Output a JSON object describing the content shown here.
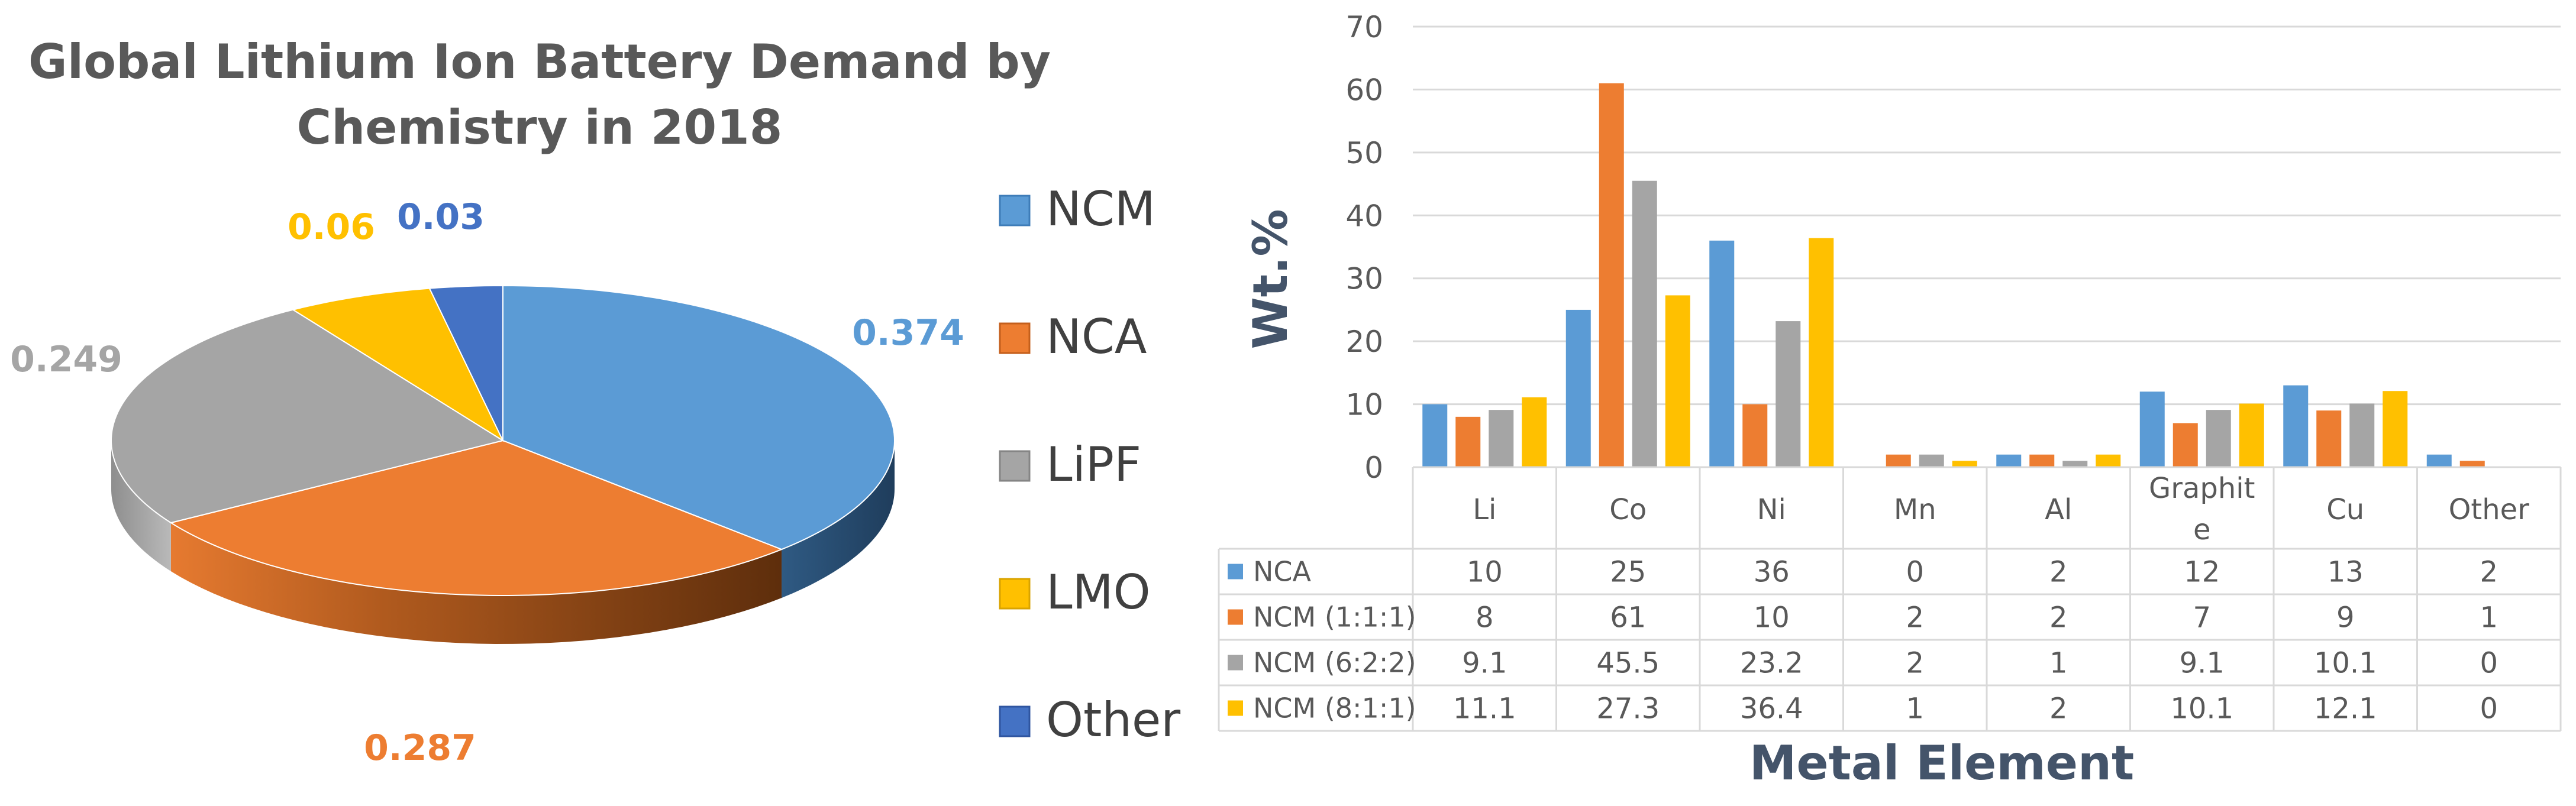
{
  "colors": {
    "blue": "#5B9BD5",
    "orange": "#ED7D31",
    "gray": "#A5A5A5",
    "yellow": "#FFC000",
    "darkblue": "#4472C4",
    "title": "#595959",
    "axis_title": "#44546A",
    "tick": "#595959",
    "grid": "#D9D9D9"
  },
  "pie_chart": {
    "title_line1": "Global Lithium Ion Battery Demand by",
    "title_line2": "Chemistry in 2018",
    "legend": [
      "NCM",
      "NCA",
      "LiPF",
      "LMO",
      "Other"
    ]
  },
  "bar_chart": {
    "ylabel": "Wt.%",
    "xlabel": "Metal Element",
    "category_labels": [
      "Li",
      "Co",
      "Ni",
      "Mn",
      "Al",
      "Graphit\ne",
      "Cu",
      "Other"
    ],
    "series_labels": [
      "NCA",
      "NCM (1:1:1)",
      "NCM (6:2:2)",
      "NCM (8:1:1)"
    ]
  },
  "chart_data": [
    {
      "type": "pie",
      "title": "Global Lithium Ion Battery Demand by Chemistry in 2018",
      "categories": [
        "NCM",
        "NCA",
        "LiPF",
        "LMO",
        "Other"
      ],
      "values": [
        0.374,
        0.287,
        0.249,
        0.06,
        0.03
      ],
      "labels": [
        "0.374",
        "0.287",
        "0.249",
        "0.06",
        "0.03"
      ],
      "legend_position": "right"
    },
    {
      "type": "bar",
      "title": "",
      "xlabel": "Metal Element",
      "ylabel": "Wt.%",
      "ylim": [
        0,
        70
      ],
      "yticks": [
        0,
        10,
        20,
        30,
        40,
        50,
        60,
        70
      ],
      "grid": true,
      "categories": [
        "Li",
        "Co",
        "Ni",
        "Mn",
        "Al",
        "Graphite",
        "Cu",
        "Other"
      ],
      "series": [
        {
          "name": "NCA",
          "values": [
            10,
            25,
            36,
            0,
            2,
            12,
            13,
            2
          ]
        },
        {
          "name": "NCM (1:1:1)",
          "values": [
            8,
            61,
            10,
            2,
            2,
            7,
            9,
            1
          ]
        },
        {
          "name": "NCM (6:2:2)",
          "values": [
            9.1,
            45.5,
            23.2,
            2,
            1,
            9.1,
            10.1,
            0
          ]
        },
        {
          "name": "NCM (8:1:1)",
          "values": [
            11.1,
            27.3,
            36.4,
            1,
            2,
            10.1,
            12.1,
            0
          ]
        }
      ],
      "legend_position": "data-table"
    }
  ]
}
